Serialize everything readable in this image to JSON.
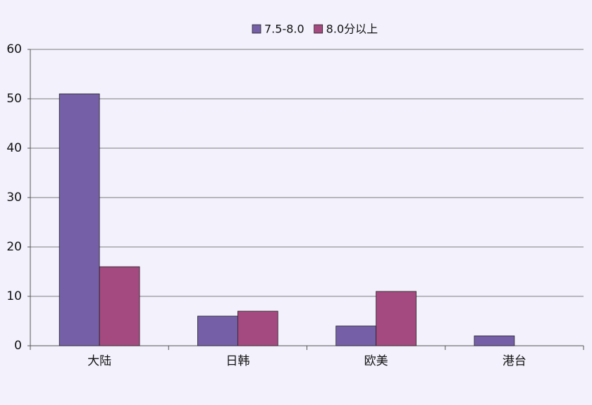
{
  "chart_data": {
    "type": "bar",
    "categories": [
      "大陆",
      "日韩",
      "欧美",
      "港台"
    ],
    "series": [
      {
        "name": "7.5-8.0",
        "color": "#7560a8",
        "values": [
          51,
          6,
          4,
          2
        ]
      },
      {
        "name": "8.0分以上",
        "color": "#a54a80",
        "values": [
          16,
          7,
          11,
          0
        ]
      }
    ],
    "ylim": [
      0,
      60
    ],
    "yticks": [
      0,
      10,
      20,
      30,
      40,
      50,
      60
    ],
    "grid": true,
    "legend": "top"
  }
}
